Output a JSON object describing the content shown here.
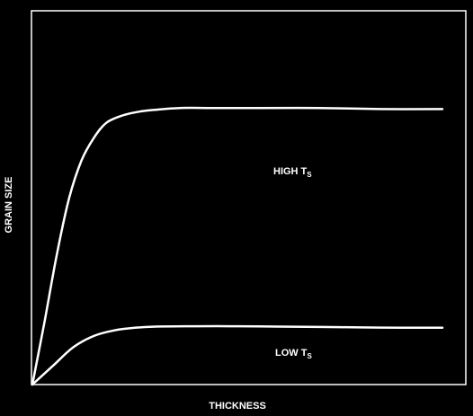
{
  "chart_data": {
    "type": "line",
    "title": "",
    "xlabel": "THICKNESS",
    "ylabel": "GRAIN SIZE",
    "xlim": [
      0,
      1
    ],
    "ylim": [
      0,
      1
    ],
    "grid": false,
    "ticks": false,
    "colors": {
      "background": "#000000",
      "foreground": "#ffffff"
    },
    "series": [
      {
        "label_main": "HIGH T",
        "label_sub": "S",
        "x": [
          0,
          0.03,
          0.06,
          0.09,
          0.12,
          0.15,
          0.18,
          0.22,
          0.26,
          0.3,
          0.36,
          0.44,
          0.55,
          0.7,
          0.85,
          1.0
        ],
        "y": [
          0,
          0.17,
          0.35,
          0.5,
          0.6,
          0.66,
          0.7,
          0.72,
          0.73,
          0.735,
          0.74,
          0.74,
          0.74,
          0.74,
          0.737,
          0.737
        ]
      },
      {
        "label_main": "LOW T",
        "label_sub": "S",
        "x": [
          0,
          0.05,
          0.1,
          0.15,
          0.2,
          0.25,
          0.3,
          0.4,
          0.5,
          0.6,
          0.7,
          0.8,
          0.9,
          1.0
        ],
        "y": [
          0,
          0.05,
          0.1,
          0.13,
          0.145,
          0.152,
          0.155,
          0.156,
          0.156,
          0.155,
          0.154,
          0.153,
          0.152,
          0.152
        ]
      }
    ]
  }
}
